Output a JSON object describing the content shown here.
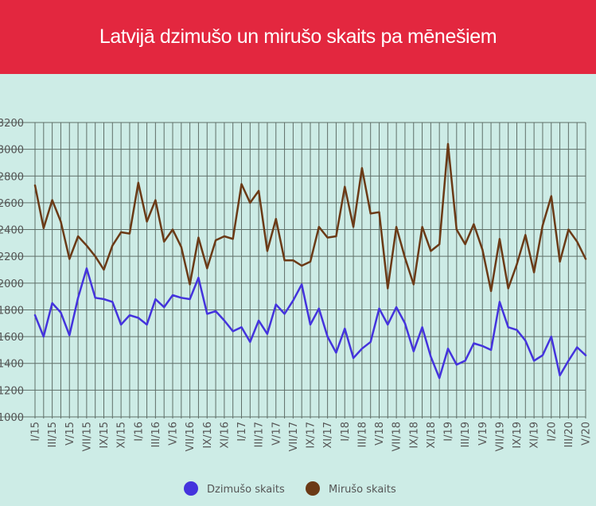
{
  "title": "Latvijā dzimušo un mirušo skaits pa mēnešiem",
  "chart_data": {
    "type": "line",
    "title": "Latvijā dzimušo un mirušo skaits pa mēnešiem",
    "xlabel": "",
    "ylabel": "",
    "ylim": [
      1000,
      3200
    ],
    "yticks": [
      1000,
      1200,
      1400,
      1600,
      1800,
      2000,
      2200,
      2400,
      2600,
      2800,
      3000,
      3200
    ],
    "ytick_labels": [
      "1000",
      "1200",
      "1400",
      "1600",
      "1800",
      "2000",
      "2200",
      "2400",
      "2600",
      "2800",
      "3000",
      "3200"
    ],
    "grid": true,
    "legend_position": "bottom",
    "x": [
      "I/15",
      "II/15",
      "III/15",
      "IV/15",
      "V/15",
      "VI/15",
      "VII/15",
      "VIII/15",
      "IX/15",
      "X/15",
      "XI/15",
      "XII/15",
      "I/16",
      "II/16",
      "III/16",
      "IV/16",
      "V/16",
      "VI/16",
      "VII/16",
      "VIII/16",
      "IX/16",
      "X/16",
      "XI/16",
      "XII/16",
      "I/17",
      "II/17",
      "III/17",
      "IV/17",
      "V/17",
      "VI/17",
      "VII/17",
      "VIII/17",
      "IX/17",
      "X/17",
      "XI/17",
      "XII/17",
      "I/18",
      "II/18",
      "III/18",
      "IV/18",
      "V/18",
      "VI/18",
      "VII/18",
      "VIII/18",
      "IX/18",
      "X/18",
      "XI/18",
      "XII/18",
      "I/19",
      "II/19",
      "III/19",
      "IV/19",
      "V/19",
      "VI/19",
      "VII/19",
      "VIII/19",
      "IX/19",
      "X/19",
      "XI/19",
      "XII/19",
      "I/20",
      "II/20",
      "III/20",
      "IV/20",
      "V/20"
    ],
    "x_tick_labels": [
      "I/15",
      "III/15",
      "V/15",
      "VII/15",
      "IX/15",
      "XI/15",
      "I/16",
      "III/16",
      "V/16",
      "VII/16",
      "IX/16",
      "XI/16",
      "I/17",
      "III/17",
      "V/17",
      "VII/17",
      "IX/17",
      "XI/17",
      "I/18",
      "III/18",
      "V/18",
      "VII/18",
      "IX/18",
      "XI/18",
      "I/19",
      "III/19",
      "V/19",
      "VII/19",
      "IX/19",
      "XI/19",
      "I/20",
      "III/20",
      "V/20"
    ],
    "series": [
      {
        "name": "Dzimušo skaits",
        "color": "#4433dd",
        "values": [
          1760,
          1600,
          1850,
          1780,
          1610,
          1890,
          2110,
          1890,
          1880,
          1860,
          1690,
          1760,
          1740,
          1690,
          1880,
          1820,
          1910,
          1890,
          1880,
          2040,
          1770,
          1790,
          1720,
          1640,
          1670,
          1560,
          1720,
          1620,
          1840,
          1770,
          1870,
          1990,
          1690,
          1810,
          1600,
          1480,
          1660,
          1440,
          1510,
          1560,
          1810,
          1690,
          1820,
          1700,
          1490,
          1670,
          1450,
          1290,
          1510,
          1390,
          1420,
          1550,
          1530,
          1500,
          1860,
          1670,
          1650,
          1570,
          1420,
          1460,
          1600,
          1310,
          1420,
          1520,
          1460
        ]
      },
      {
        "name": "Mirušo skaits",
        "color": "#6b3a16",
        "values": [
          2730,
          2410,
          2620,
          2460,
          2180,
          2350,
          2280,
          2200,
          2100,
          2280,
          2380,
          2370,
          2750,
          2460,
          2620,
          2310,
          2400,
          2270,
          1990,
          2340,
          2110,
          2320,
          2350,
          2330,
          2740,
          2600,
          2690,
          2240,
          2480,
          2170,
          2170,
          2130,
          2160,
          2420,
          2340,
          2350,
          2720,
          2420,
          2860,
          2520,
          2530,
          1960,
          2420,
          2190,
          1990,
          2420,
          2240,
          2290,
          3040,
          2400,
          2290,
          2440,
          2250,
          1940,
          2330,
          1960,
          2140,
          2360,
          2080,
          2430,
          2650,
          2160,
          2400,
          2310,
          2180
        ]
      }
    ]
  }
}
